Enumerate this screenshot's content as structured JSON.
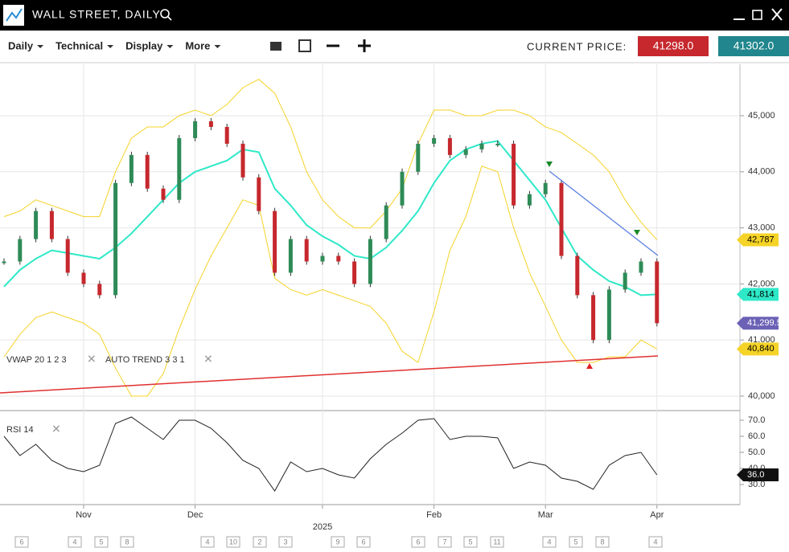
{
  "header": {
    "title": "WALL STREET, DAILY"
  },
  "toolbar": {
    "menus": [
      "Daily",
      "Technical",
      "Display",
      "More"
    ],
    "current_price_label": "CURRENT PRICE:",
    "sell": "41298.0",
    "buy": "41302.0"
  },
  "indicators": {
    "vwap": "VWAP 20 1 2 3",
    "auto_trend": "AUTO TREND 3 3 1",
    "rsi": "RSI 14"
  },
  "calendar_events": [
    "6",
    "4",
    "5",
    "8",
    "4",
    "10",
    "2",
    "3",
    "9",
    "6",
    "6",
    "7",
    "5",
    "11",
    "4",
    "5",
    "8",
    "4"
  ],
  "chart_data": {
    "type": "candlestick",
    "categories": [
      null,
      null,
      null,
      null,
      null,
      "Nov",
      null,
      null,
      null,
      null,
      null,
      null,
      "Dec",
      null,
      null,
      null,
      null,
      null,
      null,
      null,
      "2025",
      null,
      null,
      null,
      null,
      null,
      null,
      "Feb",
      null,
      null,
      null,
      null,
      null,
      null,
      "Mar",
      null,
      null,
      null,
      null,
      null,
      null,
      "Apr"
    ],
    "ylim": [
      39756,
      45917
    ],
    "yticks": [
      {
        "value": 40000,
        "label": "40,000"
      },
      {
        "value": 41000,
        "label": "41,000"
      },
      {
        "value": 42000,
        "label": "42,000"
      },
      {
        "value": 43000,
        "label": "43,000"
      },
      {
        "value": 44000,
        "label": "44,000"
      },
      {
        "value": 45000,
        "label": "45,000"
      }
    ],
    "grid": true,
    "series": [
      {
        "color": "#2e8b57",
        "values": [
          42400,
          42800,
          43300,
          42800,
          42200,
          42000,
          41800,
          43800,
          44300,
          43700,
          43500,
          44600,
          44900,
          44800,
          44500,
          43900,
          43300,
          42200,
          42800,
          42400,
          42500,
          42400,
          42000,
          42800,
          43400,
          44000,
          44500,
          44600,
          44300,
          44400,
          44500,
          44500,
          43400,
          43600,
          43800,
          42500,
          41800,
          41000,
          41900,
          42200,
          42400,
          41299.5
        ],
        "last_label": "41,299.50",
        "label_bg": "#6b62b5"
      },
      {
        "color": "#2ee8c8",
        "values": [
          41950,
          42250,
          42450,
          42600,
          42550,
          42500,
          42450,
          42650,
          42900,
          43200,
          43500,
          43800,
          44000,
          44100,
          44200,
          44400,
          44350,
          43700,
          43400,
          43050,
          42850,
          42700,
          42500,
          42450,
          42650,
          42950,
          43300,
          43800,
          44200,
          44400,
          44500,
          44550,
          44200,
          43850,
          43500,
          43000,
          42500,
          42250,
          42050,
          41950,
          41800,
          41814
        ],
        "last_label": "41,814",
        "label_bg": "#2ee8c8"
      },
      {
        "color": "#f5d327",
        "values": [
          43200,
          43300,
          43500,
          43400,
          43300,
          43200,
          43200,
          44000,
          44600,
          44800,
          44800,
          45000,
          45100,
          45000,
          45200,
          45500,
          45650,
          45400,
          44800,
          44000,
          43500,
          43200,
          43000,
          43000,
          43300,
          43700,
          44500,
          45100,
          45100,
          45000,
          45000,
          45100,
          45100,
          45000,
          44800,
          44700,
          44500,
          44300,
          44000,
          43500,
          43100,
          42787
        ],
        "last_label": "42,787",
        "label_bg": "#f5d327"
      },
      {
        "color": "#f5d327",
        "values": [
          40700,
          41100,
          41400,
          41500,
          41400,
          41300,
          41100,
          40500,
          40000,
          40000,
          40400,
          41200,
          41900,
          42500,
          43000,
          43500,
          43400,
          42100,
          41900,
          41800,
          41900,
          41800,
          41700,
          41600,
          41300,
          40800,
          40600,
          41500,
          42600,
          43200,
          44100,
          44000,
          43000,
          42200,
          41600,
          41000,
          40600,
          40600,
          40700,
          40700,
          41000,
          40840
        ],
        "last_label": "40,840",
        "label_bg": "#f5d327"
      }
    ],
    "rsi": {
      "color": "#222222",
      "ylim": [
        17.5,
        75
      ],
      "yticks": [
        {
          "value": 70,
          "label": "70.0"
        },
        {
          "value": 60,
          "label": "60.0"
        },
        {
          "value": 50,
          "label": "50.0"
        },
        {
          "value": 40,
          "label": "40.0"
        },
        {
          "value": 30,
          "label": "30.0"
        }
      ],
      "values": [
        60,
        48,
        55,
        45,
        40,
        38,
        42,
        68,
        72,
        65,
        58,
        70,
        70,
        65,
        56,
        45,
        40,
        26,
        44,
        38,
        40,
        36,
        34,
        46,
        55,
        62,
        70,
        71,
        58,
        60,
        60,
        59,
        40,
        44,
        42,
        34,
        32,
        27,
        42,
        48,
        50,
        36
      ],
      "last_label": "36.0"
    }
  }
}
